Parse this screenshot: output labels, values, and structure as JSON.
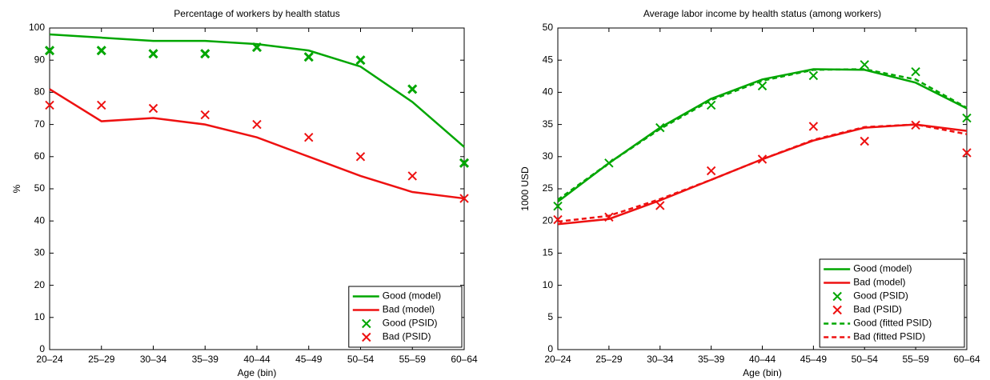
{
  "chart_data": [
    {
      "type": "line",
      "title": "Percentage of workers by health status",
      "xlabel": "Age (bin)",
      "ylabel": "%",
      "categories": [
        "20–24",
        "25–29",
        "30–34",
        "35–39",
        "40–44",
        "45–49",
        "50–54",
        "55–59",
        "60–64"
      ],
      "ylim": [
        0,
        100
      ],
      "yticks": [
        0,
        10,
        20,
        30,
        40,
        50,
        60,
        70,
        80,
        90,
        100
      ],
      "grid": false,
      "legend": "lower right",
      "series": [
        {
          "name": "Good (model)",
          "color": "#00a600",
          "style": "solid",
          "values": [
            98,
            97,
            96,
            96,
            95,
            93,
            88,
            77,
            63
          ]
        },
        {
          "name": "Bad (model)",
          "color": "#ee1111",
          "style": "solid",
          "values": [
            81,
            71,
            72,
            70,
            66,
            60,
            54,
            49,
            47
          ]
        },
        {
          "name": "Good (PSID)",
          "color": "#00a600",
          "style": "marker",
          "values": [
            93,
            93,
            92,
            92,
            94,
            91,
            90,
            81,
            58
          ]
        },
        {
          "name": "Bad (PSID)",
          "color": "#ee1111",
          "style": "marker",
          "values": [
            76,
            76,
            75,
            73,
            70,
            66,
            60,
            54,
            47
          ]
        }
      ]
    },
    {
      "type": "line",
      "title": "Average labor income by health status (among workers)",
      "xlabel": "Age (bin)",
      "ylabel": "1000 USD",
      "categories": [
        "20–24",
        "25–29",
        "30–34",
        "35–39",
        "40–44",
        "45–49",
        "50–54",
        "55–59",
        "60–64"
      ],
      "ylim": [
        0,
        50
      ],
      "yticks": [
        0,
        5,
        10,
        15,
        20,
        25,
        30,
        35,
        40,
        45,
        50
      ],
      "grid": false,
      "legend": "lower right",
      "series": [
        {
          "name": "Good (model)",
          "color": "#00a600",
          "style": "solid",
          "values": [
            23,
            29,
            34.5,
            39,
            42,
            43.6,
            43.5,
            41.5,
            37.5
          ]
        },
        {
          "name": "Bad (model)",
          "color": "#ee1111",
          "style": "solid",
          "values": [
            19.5,
            20.3,
            23.2,
            26.4,
            29.6,
            32.5,
            34.5,
            35,
            34
          ]
        },
        {
          "name": "Good (PSID)",
          "color": "#00a600",
          "style": "marker",
          "values": [
            22.3,
            29,
            34.5,
            38,
            41,
            42.6,
            44.3,
            43.2,
            36
          ]
        },
        {
          "name": "Bad (PSID)",
          "color": "#ee1111",
          "style": "marker",
          "values": [
            20.2,
            20.6,
            22.4,
            27.8,
            29.6,
            34.7,
            32.4,
            34.9,
            30.6
          ]
        },
        {
          "name": "Good (fitted PSID)",
          "color": "#00a600",
          "style": "dashed",
          "values": [
            23.3,
            29,
            34.3,
            38.8,
            41.8,
            43.5,
            43.6,
            42,
            37.6
          ]
        },
        {
          "name": "Bad (fitted PSID)",
          "color": "#ee1111",
          "style": "dashed",
          "values": [
            19.9,
            20.8,
            23.4,
            26.4,
            29.6,
            32.6,
            34.6,
            35,
            33.5
          ]
        }
      ]
    }
  ]
}
